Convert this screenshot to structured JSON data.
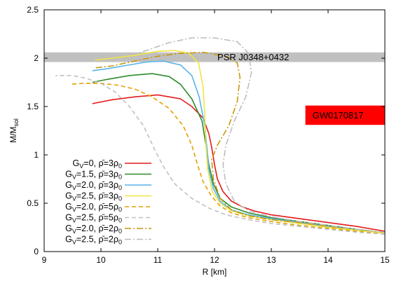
{
  "chart_data": {
    "type": "line",
    "xlabel": "R [km]",
    "ylabel": {
      "main": "M/M",
      "sub": "sol"
    },
    "xlim": [
      9,
      15
    ],
    "ylim": [
      0,
      2.5
    ],
    "xticks": [
      "9",
      "10",
      "11",
      "12",
      "13",
      "14",
      "15"
    ],
    "yticks": [
      "0",
      "0.5",
      "1",
      "1.5",
      "2",
      "2.5"
    ],
    "xtick_values": [
      9,
      10,
      11,
      12,
      13,
      14,
      15
    ],
    "ytick_values": [
      0,
      0.5,
      1,
      1.5,
      2,
      2.5
    ],
    "legend_placement": "bottom-left",
    "bands": [
      {
        "label": "PSR J0348+0432",
        "x": [
          9,
          15
        ],
        "y": [
          1.96,
          2.06
        ],
        "color": "#c0c0c0"
      },
      {
        "label": "GW0170817",
        "x": [
          13.6,
          15
        ],
        "y": [
          1.31,
          1.51
        ],
        "color": "#ff0000"
      }
    ],
    "series": [
      {
        "legend": {
          "prefix": "G",
          "sub1": "V",
          "mid": "=0, ",
          "rho": "ρ̄",
          "eq": "=3ρ",
          "sub2": "0"
        },
        "color": "#e31a1c",
        "dash": "",
        "points": [
          [
            15,
            0.21
          ],
          [
            14.5,
            0.26
          ],
          [
            14,
            0.3
          ],
          [
            13.5,
            0.34
          ],
          [
            13,
            0.38
          ],
          [
            12.7,
            0.42
          ],
          [
            12.5,
            0.46
          ],
          [
            12.3,
            0.52
          ],
          [
            12.15,
            0.62
          ],
          [
            12.05,
            0.75
          ],
          [
            12.0,
            0.9
          ],
          [
            11.95,
            1.08
          ],
          [
            11.9,
            1.22
          ],
          [
            11.8,
            1.38
          ],
          [
            11.6,
            1.5
          ],
          [
            11.4,
            1.58
          ],
          [
            11.0,
            1.62
          ],
          [
            10.6,
            1.6
          ],
          [
            10.2,
            1.57
          ],
          [
            9.85,
            1.53
          ]
        ]
      },
      {
        "legend": {
          "prefix": "G",
          "sub1": "V",
          "mid": "=1.5, ",
          "rho": "ρ̄",
          "eq": "=3ρ",
          "sub2": "0"
        },
        "color": "#2e8b2e",
        "dash": "",
        "points": [
          [
            15,
            0.19
          ],
          [
            14.5,
            0.23
          ],
          [
            14,
            0.27
          ],
          [
            13.5,
            0.31
          ],
          [
            13,
            0.35
          ],
          [
            12.6,
            0.4
          ],
          [
            12.3,
            0.46
          ],
          [
            12.1,
            0.55
          ],
          [
            11.98,
            0.7
          ],
          [
            11.9,
            0.9
          ],
          [
            11.85,
            1.1
          ],
          [
            11.78,
            1.35
          ],
          [
            11.6,
            1.58
          ],
          [
            11.4,
            1.73
          ],
          [
            11.2,
            1.81
          ],
          [
            10.9,
            1.84
          ],
          [
            10.5,
            1.82
          ],
          [
            10.1,
            1.78
          ],
          [
            9.85,
            1.75
          ]
        ]
      },
      {
        "legend": {
          "prefix": "G",
          "sub1": "V",
          "mid": "=2.0, ",
          "rho": "ρ̄",
          "eq": "=3ρ",
          "sub2": "0"
        },
        "color": "#56b4e9",
        "dash": "",
        "points": [
          [
            15,
            0.19
          ],
          [
            14.5,
            0.22
          ],
          [
            14,
            0.26
          ],
          [
            13.5,
            0.3
          ],
          [
            13,
            0.34
          ],
          [
            12.6,
            0.38
          ],
          [
            12.3,
            0.43
          ],
          [
            12.1,
            0.52
          ],
          [
            11.98,
            0.65
          ],
          [
            11.9,
            0.85
          ],
          [
            11.87,
            1.05
          ],
          [
            11.83,
            1.3
          ],
          [
            11.73,
            1.6
          ],
          [
            11.6,
            1.82
          ],
          [
            11.4,
            1.93
          ],
          [
            11.1,
            1.97
          ],
          [
            10.8,
            1.96
          ],
          [
            10.4,
            1.92
          ],
          [
            10.1,
            1.89
          ],
          [
            9.85,
            1.87
          ]
        ]
      },
      {
        "legend": {
          "prefix": "G",
          "sub1": "V",
          "mid": "=2.5, ",
          "rho": "ρ̄",
          "eq": "=3ρ",
          "sub2": "0"
        },
        "color": "#f0e442",
        "dash": "",
        "points": [
          [
            15,
            0.19
          ],
          [
            14.5,
            0.22
          ],
          [
            14,
            0.25
          ],
          [
            13.5,
            0.29
          ],
          [
            13,
            0.33
          ],
          [
            12.6,
            0.37
          ],
          [
            12.3,
            0.42
          ],
          [
            12.1,
            0.5
          ],
          [
            11.96,
            0.62
          ],
          [
            11.88,
            0.85
          ],
          [
            11.85,
            1.1
          ],
          [
            11.83,
            1.4
          ],
          [
            11.8,
            1.7
          ],
          [
            11.72,
            1.95
          ],
          [
            11.55,
            2.05
          ],
          [
            11.3,
            2.08
          ],
          [
            11.0,
            2.07
          ],
          [
            10.6,
            2.03
          ],
          [
            10.2,
            2.0
          ],
          [
            9.9,
            1.98
          ]
        ]
      },
      {
        "legend": {
          "prefix": "G",
          "sub1": "V",
          "mid": "=2.0, ",
          "rho": "ρ̄",
          "eq": "=5ρ",
          "sub2": "0"
        },
        "color": "#e69f00",
        "dash": "6,4",
        "points": [
          [
            15,
            0.18
          ],
          [
            14.5,
            0.21
          ],
          [
            14,
            0.24
          ],
          [
            13.5,
            0.27
          ],
          [
            13,
            0.31
          ],
          [
            12.6,
            0.35
          ],
          [
            12.3,
            0.4
          ],
          [
            12.1,
            0.47
          ],
          [
            11.95,
            0.57
          ],
          [
            11.8,
            0.72
          ],
          [
            11.7,
            0.9
          ],
          [
            11.6,
            1.1
          ],
          [
            11.45,
            1.3
          ],
          [
            11.2,
            1.48
          ],
          [
            10.9,
            1.6
          ],
          [
            10.6,
            1.68
          ],
          [
            10.3,
            1.72
          ],
          [
            10.0,
            1.74
          ],
          [
            9.7,
            1.74
          ],
          [
            9.45,
            1.73
          ]
        ]
      },
      {
        "legend": {
          "prefix": "G",
          "sub1": "V",
          "mid": "=2.5, ",
          "rho": "ρ̄",
          "eq": "=5ρ",
          "sub2": "0"
        },
        "color": "#c0c0c0",
        "dash": "6,4",
        "points": [
          [
            15,
            0.18
          ],
          [
            14.5,
            0.2
          ],
          [
            14,
            0.23
          ],
          [
            13.5,
            0.26
          ],
          [
            13,
            0.29
          ],
          [
            12.6,
            0.33
          ],
          [
            12.2,
            0.38
          ],
          [
            11.9,
            0.45
          ],
          [
            11.6,
            0.55
          ],
          [
            11.3,
            0.7
          ],
          [
            11.1,
            0.88
          ],
          [
            10.95,
            1.05
          ],
          [
            10.75,
            1.3
          ],
          [
            10.5,
            1.5
          ],
          [
            10.25,
            1.65
          ],
          [
            10.0,
            1.74
          ],
          [
            9.75,
            1.79
          ],
          [
            9.5,
            1.82
          ],
          [
            9.2,
            1.82
          ]
        ]
      },
      {
        "legend": {
          "prefix": "G",
          "sub1": "V",
          "mid": "=2.0, ",
          "rho": "ρ̄",
          "eq": "=2ρ",
          "sub2": "0"
        },
        "color": "#c9960c",
        "dash": "9,3,2,3",
        "points": [
          [
            15,
            0.2
          ],
          [
            14.5,
            0.23
          ],
          [
            14,
            0.26
          ],
          [
            13.5,
            0.3
          ],
          [
            13,
            0.33
          ],
          [
            12.6,
            0.37
          ],
          [
            12.3,
            0.43
          ],
          [
            12.1,
            0.55
          ],
          [
            11.98,
            0.75
          ],
          [
            11.95,
            0.95
          ],
          [
            12.05,
            1.1
          ],
          [
            12.25,
            1.3
          ],
          [
            12.4,
            1.55
          ],
          [
            12.45,
            1.8
          ],
          [
            12.4,
            1.95
          ],
          [
            12.2,
            2.02
          ],
          [
            11.8,
            2.06
          ],
          [
            11.4,
            2.05
          ],
          [
            11.0,
            2.02
          ],
          [
            10.6,
            1.97
          ],
          [
            10.2,
            1.92
          ],
          [
            9.9,
            1.9
          ]
        ]
      },
      {
        "legend": {
          "prefix": "G",
          "sub1": "V",
          "mid": "=2.5, ",
          "rho": "ρ̄",
          "eq": "=2ρ",
          "sub2": "0"
        },
        "color": "#bdbdbd",
        "dash": "9,3,2,3",
        "points": [
          [
            15,
            0.2
          ],
          [
            14.5,
            0.23
          ],
          [
            14,
            0.27
          ],
          [
            13.5,
            0.31
          ],
          [
            13,
            0.36
          ],
          [
            12.6,
            0.42
          ],
          [
            12.35,
            0.52
          ],
          [
            12.2,
            0.7
          ],
          [
            12.15,
            0.9
          ],
          [
            12.2,
            1.1
          ],
          [
            12.35,
            1.35
          ],
          [
            12.55,
            1.6
          ],
          [
            12.65,
            1.85
          ],
          [
            12.6,
            2.05
          ],
          [
            12.4,
            2.17
          ],
          [
            12.0,
            2.21
          ],
          [
            11.6,
            2.21
          ],
          [
            11.2,
            2.16
          ],
          [
            10.9,
            2.1
          ],
          [
            10.6,
            2.04
          ]
        ]
      }
    ]
  }
}
